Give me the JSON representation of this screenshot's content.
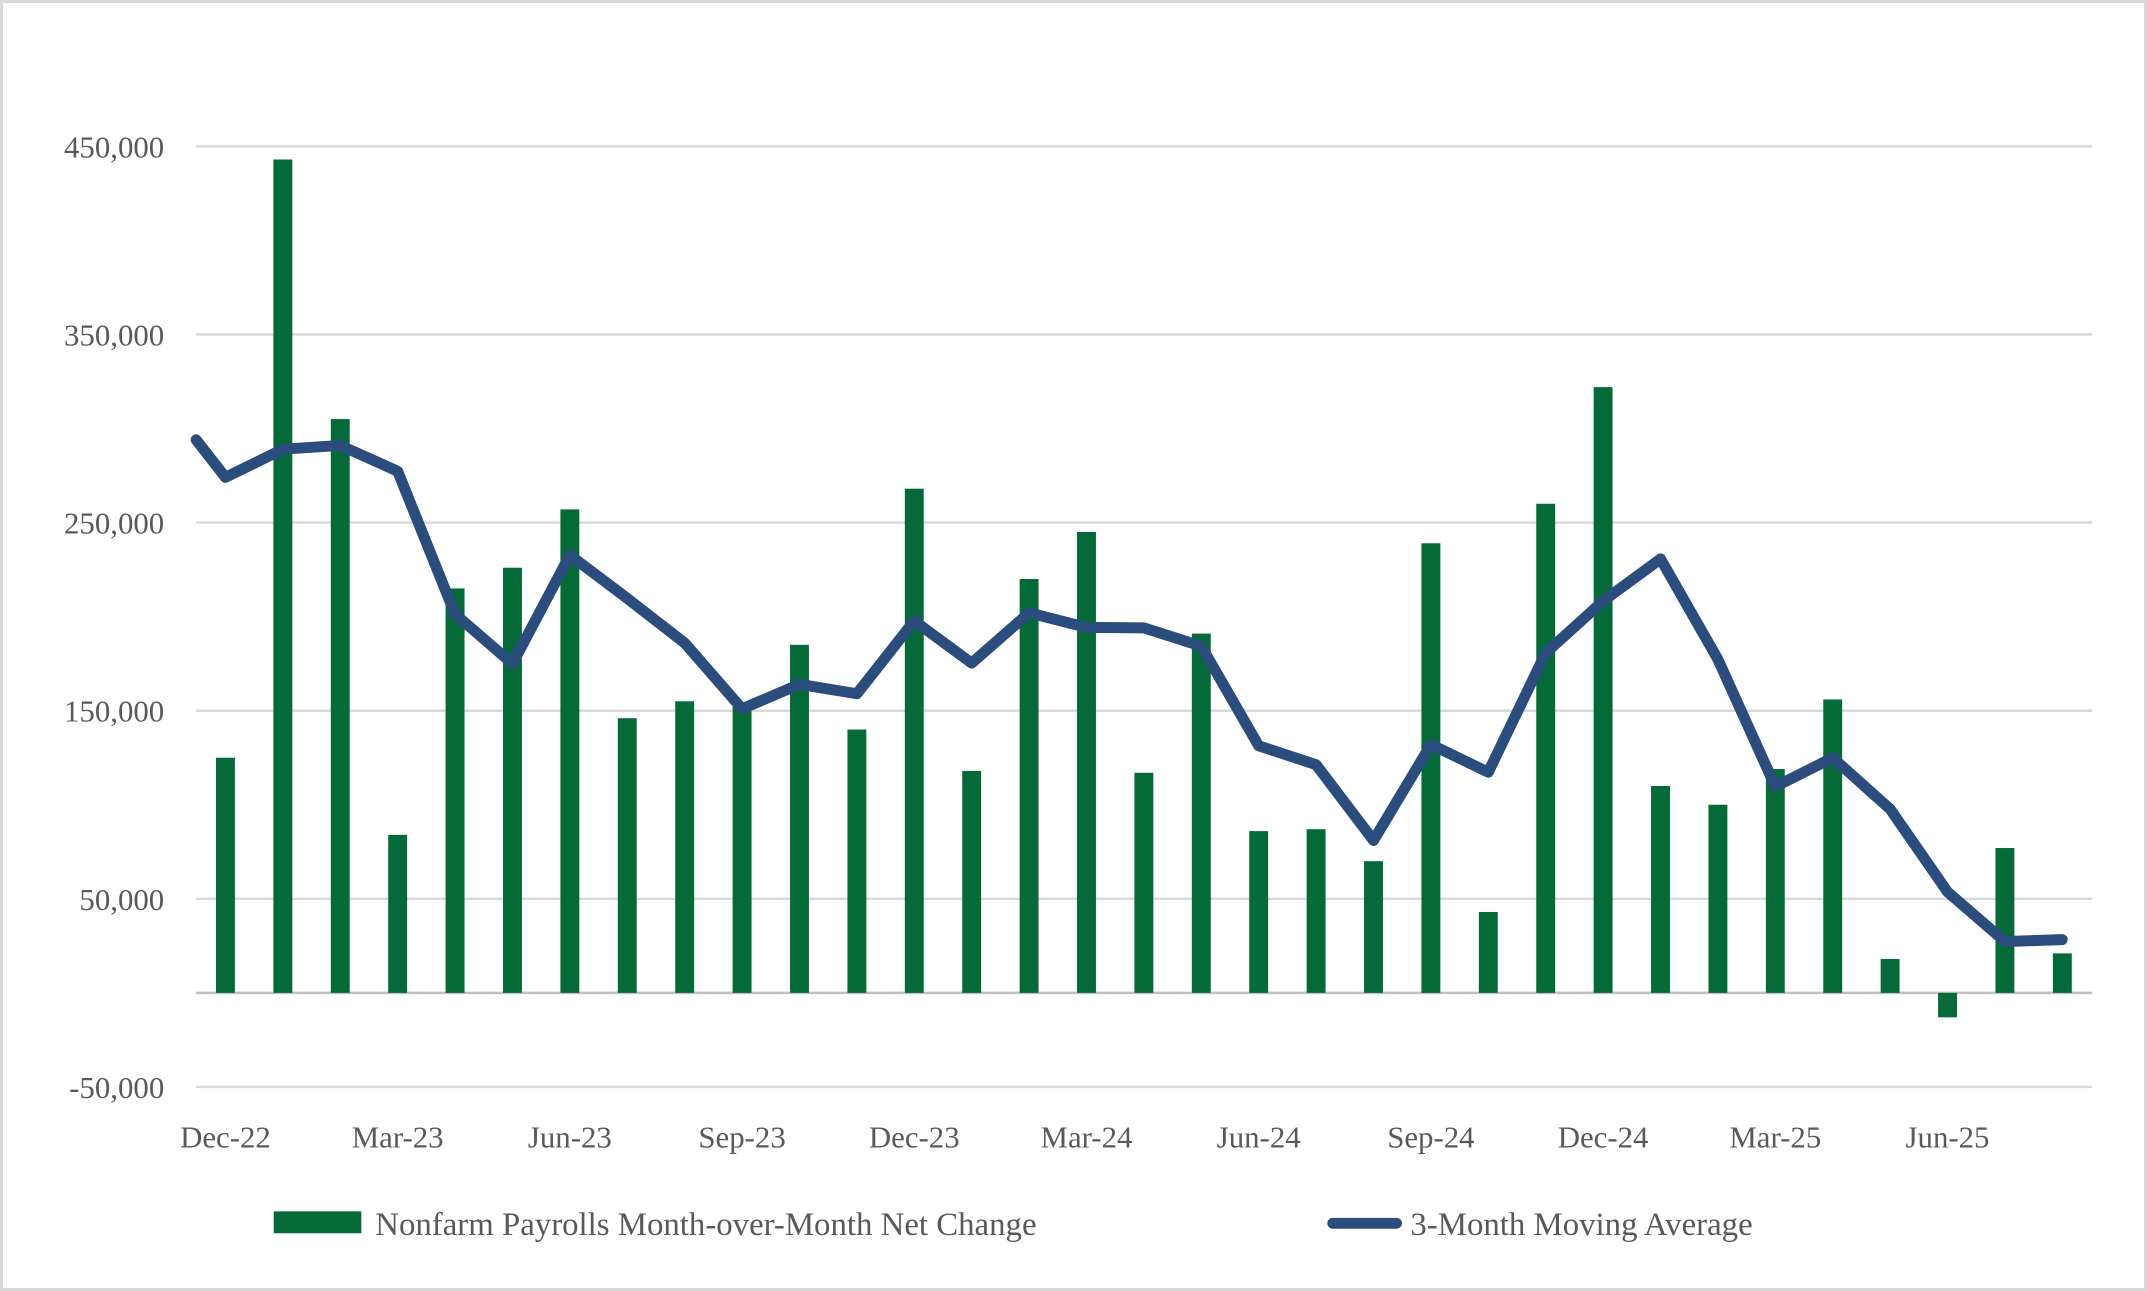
{
  "chart_data": {
    "type": "bar",
    "title": "",
    "xlabel": "",
    "ylabel": "",
    "units": "thousands of jobs (values stored in thousands; axis labels in units)",
    "grid": true,
    "legend_position": "bottom",
    "ylim": [
      -50,
      450
    ],
    "categories": [
      "Dec-22",
      "Jan-23",
      "Feb-23",
      "Mar-23",
      "Apr-23",
      "May-23",
      "Jun-23",
      "Jul-23",
      "Aug-23",
      "Sep-23",
      "Oct-23",
      "Nov-23",
      "Dec-23",
      "Jan-24",
      "Feb-24",
      "Mar-24",
      "Apr-24",
      "May-24",
      "Jun-24",
      "Jul-24",
      "Aug-24",
      "Sep-24",
      "Oct-24",
      "Nov-24",
      "Dec-24",
      "Jan-25",
      "Feb-25",
      "Mar-25",
      "Apr-25",
      "May-25",
      "Jun-25",
      "Jul-25",
      "Aug-25"
    ],
    "series": [
      {
        "name": "Nonfarm Payrolls Month-over-Month Net Change",
        "type": "bar",
        "color": "#046a38",
        "values": [
          125,
          443,
          305,
          84,
          215,
          226,
          257,
          146,
          155,
          152,
          185,
          140,
          268,
          118,
          220,
          245,
          117,
          191,
          86,
          87,
          70,
          239,
          43,
          260,
          322,
          110,
          100,
          119,
          156,
          18,
          -13,
          77,
          21
        ]
      },
      {
        "name": "3-Month Moving Average",
        "type": "line",
        "color": "#2b4d7e",
        "edge_start": 294,
        "values": [
          274,
          289,
          291,
          277.3,
          201.3,
          175,
          232.7,
          209.7,
          186,
          151,
          164,
          159,
          197.7,
          175.3,
          202,
          194.3,
          194,
          184.3,
          131.3,
          121.3,
          81,
          132,
          117.3,
          180.7,
          208.3,
          230.7,
          177.3,
          109.7,
          125,
          97.7,
          53.7,
          27.3,
          28.3
        ]
      }
    ],
    "y_ticks": [
      {
        "value": 450,
        "label": "450,000"
      },
      {
        "value": 350,
        "label": "350,000"
      },
      {
        "value": 250,
        "label": "250,000"
      },
      {
        "value": 150,
        "label": "150,000"
      },
      {
        "value": 50,
        "label": "50,000"
      },
      {
        "value": -50,
        "label": "-50,000"
      }
    ],
    "x_tick_labels": [
      {
        "index": 0,
        "label": "Dec-22"
      },
      {
        "index": 3,
        "label": "Mar-23"
      },
      {
        "index": 6,
        "label": "Jun-23"
      },
      {
        "index": 9,
        "label": "Sep-23"
      },
      {
        "index": 12,
        "label": "Dec-23"
      },
      {
        "index": 15,
        "label": "Mar-24"
      },
      {
        "index": 18,
        "label": "Jun-24"
      },
      {
        "index": 21,
        "label": "Sep-24"
      },
      {
        "index": 24,
        "label": "Dec-24"
      },
      {
        "index": 27,
        "label": "Mar-25"
      },
      {
        "index": 30,
        "label": "Jun-25"
      }
    ],
    "colors": {
      "bar": "#046a38",
      "line": "#2b4d7e",
      "text": "#595959",
      "gridline": "#d9d9d9",
      "zero_axis": "#c0c0c0",
      "border": "#d8d8d8",
      "background": "#ffffff"
    }
  },
  "legend": {
    "bars_label": "Nonfarm Payrolls Month-over-Month Net Change",
    "line_label": "3-Month Moving Average"
  }
}
